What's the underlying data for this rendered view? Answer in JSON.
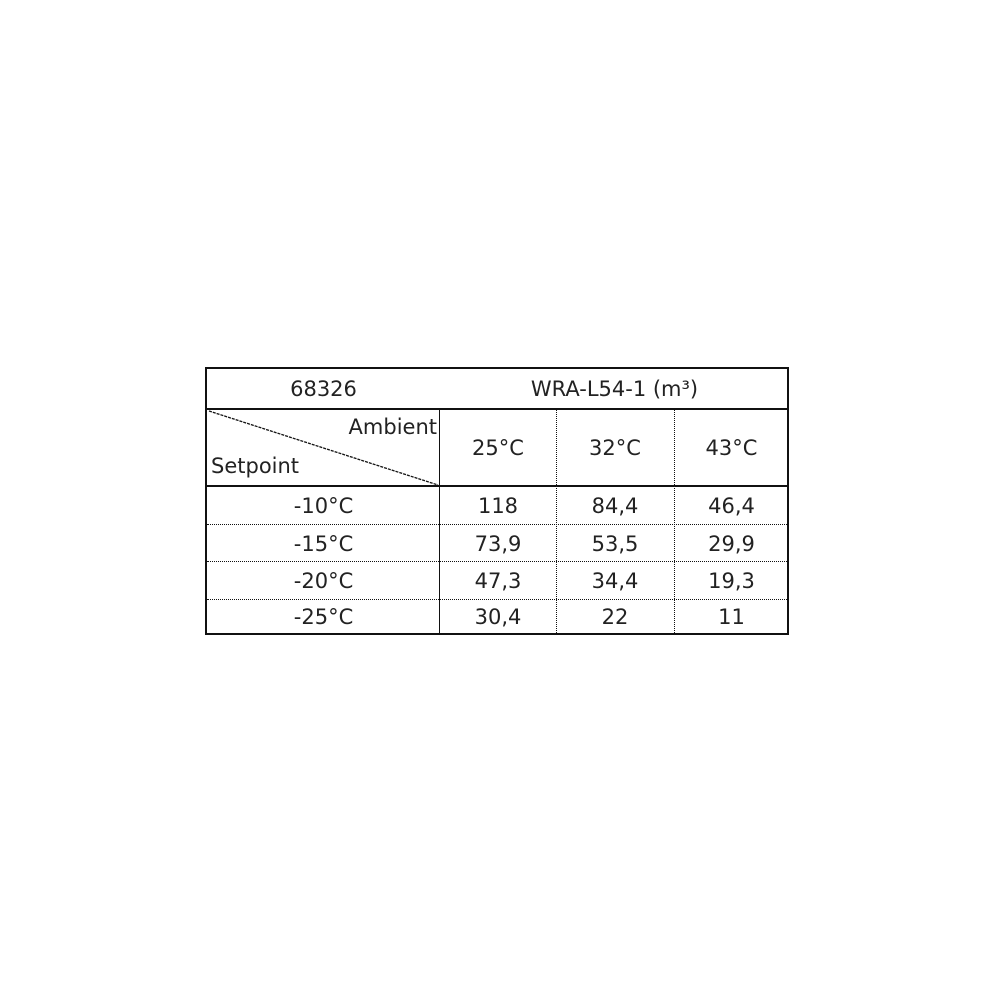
{
  "table": {
    "id_label": "68326",
    "model_label": "WRA-L54-1  (m³)",
    "corner": {
      "top_right": "Ambient",
      "bottom_left": "Setpoint"
    },
    "columns": [
      "25°C",
      "32°C",
      "43°C"
    ],
    "rows": [
      {
        "setpoint": "-10°C",
        "values": [
          "118",
          "84,4",
          "46,4"
        ]
      },
      {
        "setpoint": "-15°C",
        "values": [
          "73,9",
          "53,5",
          "29,9"
        ]
      },
      {
        "setpoint": "-20°C",
        "values": [
          "47,3",
          "34,4",
          "19,3"
        ]
      },
      {
        "setpoint": "-25°C",
        "values": [
          "30,4",
          "22",
          "11"
        ]
      }
    ]
  }
}
